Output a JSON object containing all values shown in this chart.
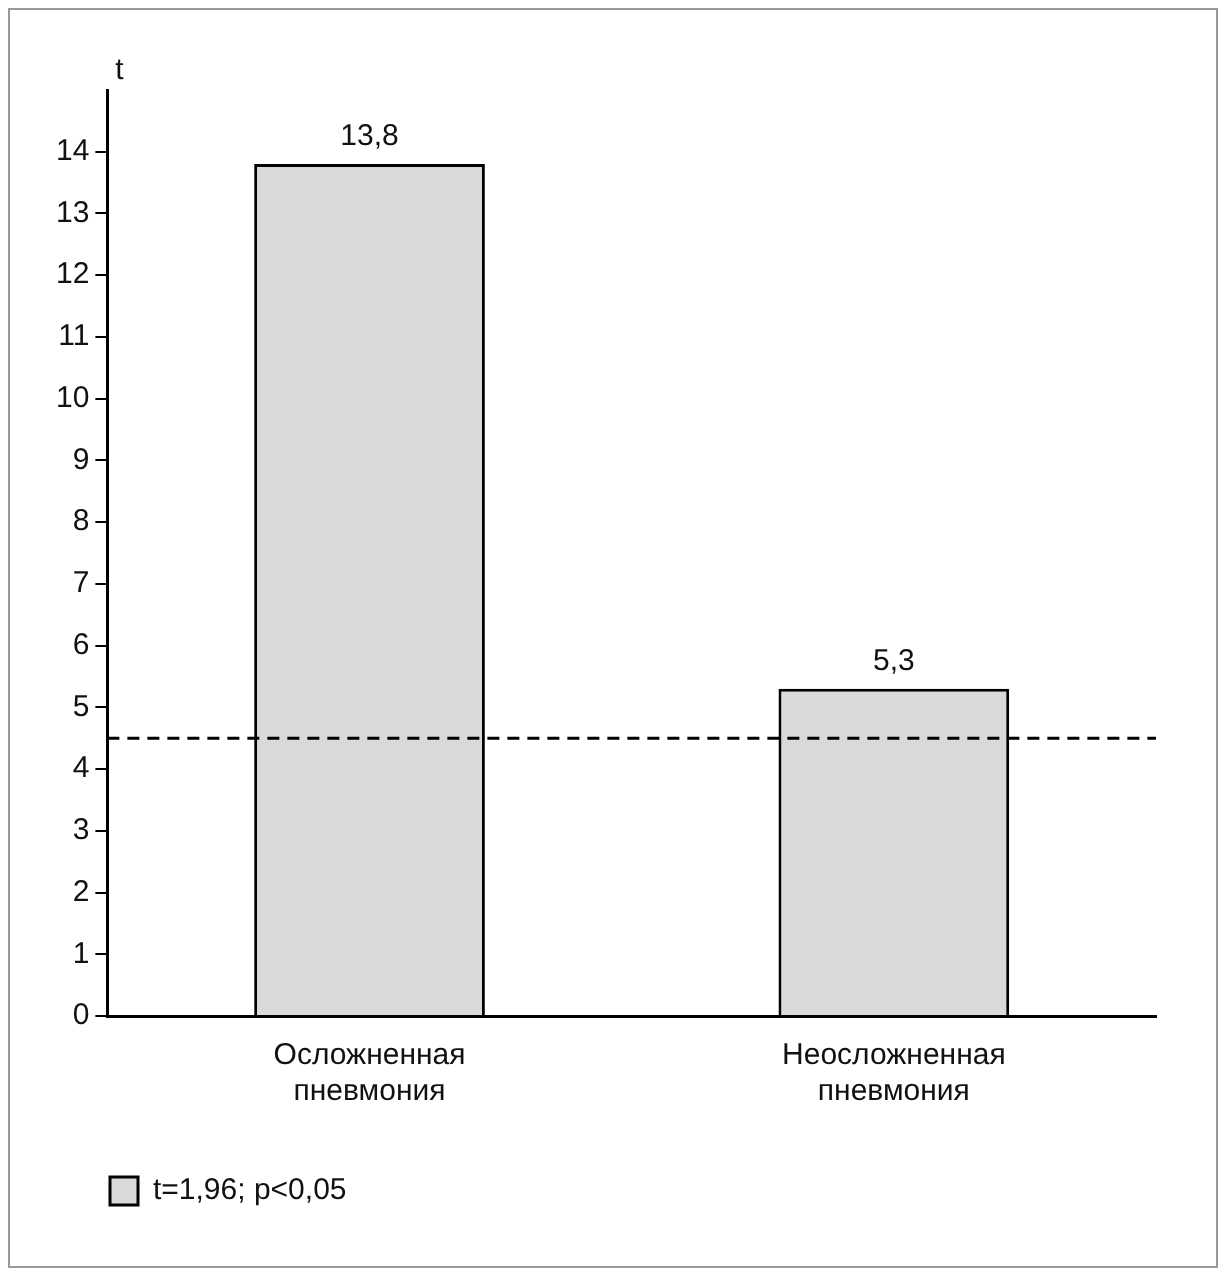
{
  "chart_data": {
    "type": "bar",
    "ylabel": "t",
    "categories": [
      "Осложненная пневмония",
      "Неосложненная пневмония"
    ],
    "series": [
      {
        "name": "t=1,96; p<0,05",
        "color": "#d9d9d9",
        "values": [
          13.8,
          5.3
        ],
        "value_labels": [
          "13,8",
          "5,3"
        ]
      }
    ],
    "ylim": [
      0,
      15
    ],
    "yticks": [
      0,
      1,
      2,
      3,
      4,
      5,
      6,
      7,
      8,
      9,
      10,
      11,
      12,
      13,
      14
    ],
    "ref_lines": [
      {
        "axis": "y",
        "value": 4.5,
        "color": "#000000",
        "line_style": "dashed"
      }
    ],
    "grid": false,
    "legend": "bottom left"
  }
}
